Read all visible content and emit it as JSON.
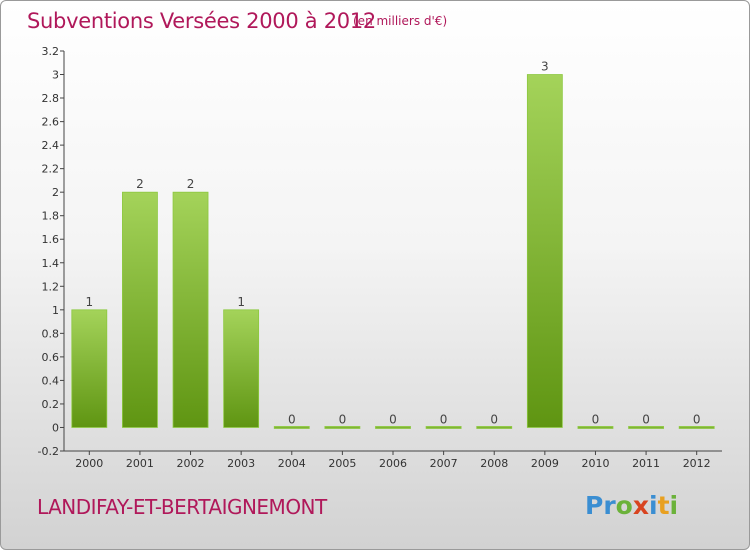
{
  "header": {
    "title": "Subventions Versées 2000 à 2012",
    "unit": "(en milliers d'€)"
  },
  "footer": {
    "commune": "LANDIFAY-ET-BERTAIGNEMONT",
    "logo": [
      "Pr",
      "o",
      "x",
      "i",
      "t",
      "i"
    ]
  },
  "colors": {
    "title": "#b0185a",
    "bar_top": "#a4d35a",
    "bar_bottom": "#5f9512",
    "axis": "#444444"
  },
  "chart_data": {
    "type": "bar",
    "title": "Subventions Versées 2000 à 2012",
    "categories": [
      "2000",
      "2001",
      "2002",
      "2003",
      "2004",
      "2005",
      "2006",
      "2007",
      "2008",
      "2009",
      "2010",
      "2011",
      "2012"
    ],
    "values": [
      1,
      2,
      2,
      1,
      0,
      0,
      0,
      0,
      0,
      3,
      0,
      0,
      0
    ],
    "data_labels": [
      "1",
      "2",
      "2",
      "1",
      "0",
      "0",
      "0",
      "0",
      "0",
      "3",
      "0",
      "0",
      "0"
    ],
    "ylim": [
      -0.2,
      3.2
    ],
    "yticks": [
      -0.2,
      0,
      0.2,
      0.4,
      0.6,
      0.8,
      1,
      1.2,
      1.4,
      1.6,
      1.8,
      2,
      2.2,
      2.4,
      2.6,
      2.8,
      3,
      3.2
    ],
    "ytick_labels": [
      "-0.2",
      "0",
      "0.2",
      "0.4",
      "0.6",
      "0.8",
      "1",
      "1.2",
      "1.4",
      "1.6",
      "1.8",
      "2",
      "2.2",
      "2.4",
      "2.6",
      "2.8",
      "3",
      "3.2"
    ],
    "grid": false,
    "legend": "none"
  }
}
